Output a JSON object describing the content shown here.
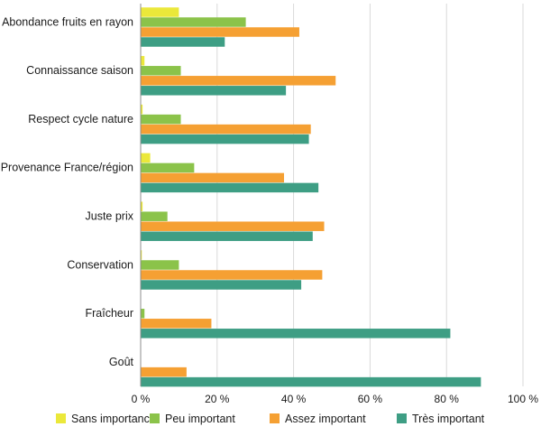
{
  "chart_data": {
    "type": "bar",
    "orientation": "horizontal",
    "title": "",
    "xlabel": "",
    "ylabel": "",
    "xlim": [
      0,
      100
    ],
    "x_ticks": [
      0,
      20,
      40,
      60,
      80,
      100
    ],
    "x_tick_labels": [
      "0 %",
      "20 %",
      "40 %",
      "60 %",
      "80 %",
      "100 %"
    ],
    "grid": true,
    "legend_position": "bottom",
    "categories": [
      "Abondance fruits en rayon",
      "Connaissance saison",
      "Respect cycle nature",
      "Provenance France/région",
      "Juste prix",
      "Conservation",
      "Fraîcheur",
      "Goût"
    ],
    "series": [
      {
        "name": "Sans importance",
        "color": "#ebe83a",
        "values": [
          10,
          1,
          0.5,
          2.5,
          0.5,
          0.3,
          0,
          0
        ]
      },
      {
        "name": "Peu important",
        "color": "#8bc34a",
        "values": [
          27.5,
          10.5,
          10.5,
          14,
          7,
          10,
          1,
          0
        ]
      },
      {
        "name": "Assez important",
        "color": "#f5a033",
        "values": [
          41.5,
          51,
          44.5,
          37.5,
          48,
          47.5,
          18.5,
          12
        ]
      },
      {
        "name": "Très important",
        "color": "#3e9e84",
        "values": [
          22,
          38,
          44,
          46.5,
          45,
          42,
          81,
          89
        ]
      }
    ]
  }
}
